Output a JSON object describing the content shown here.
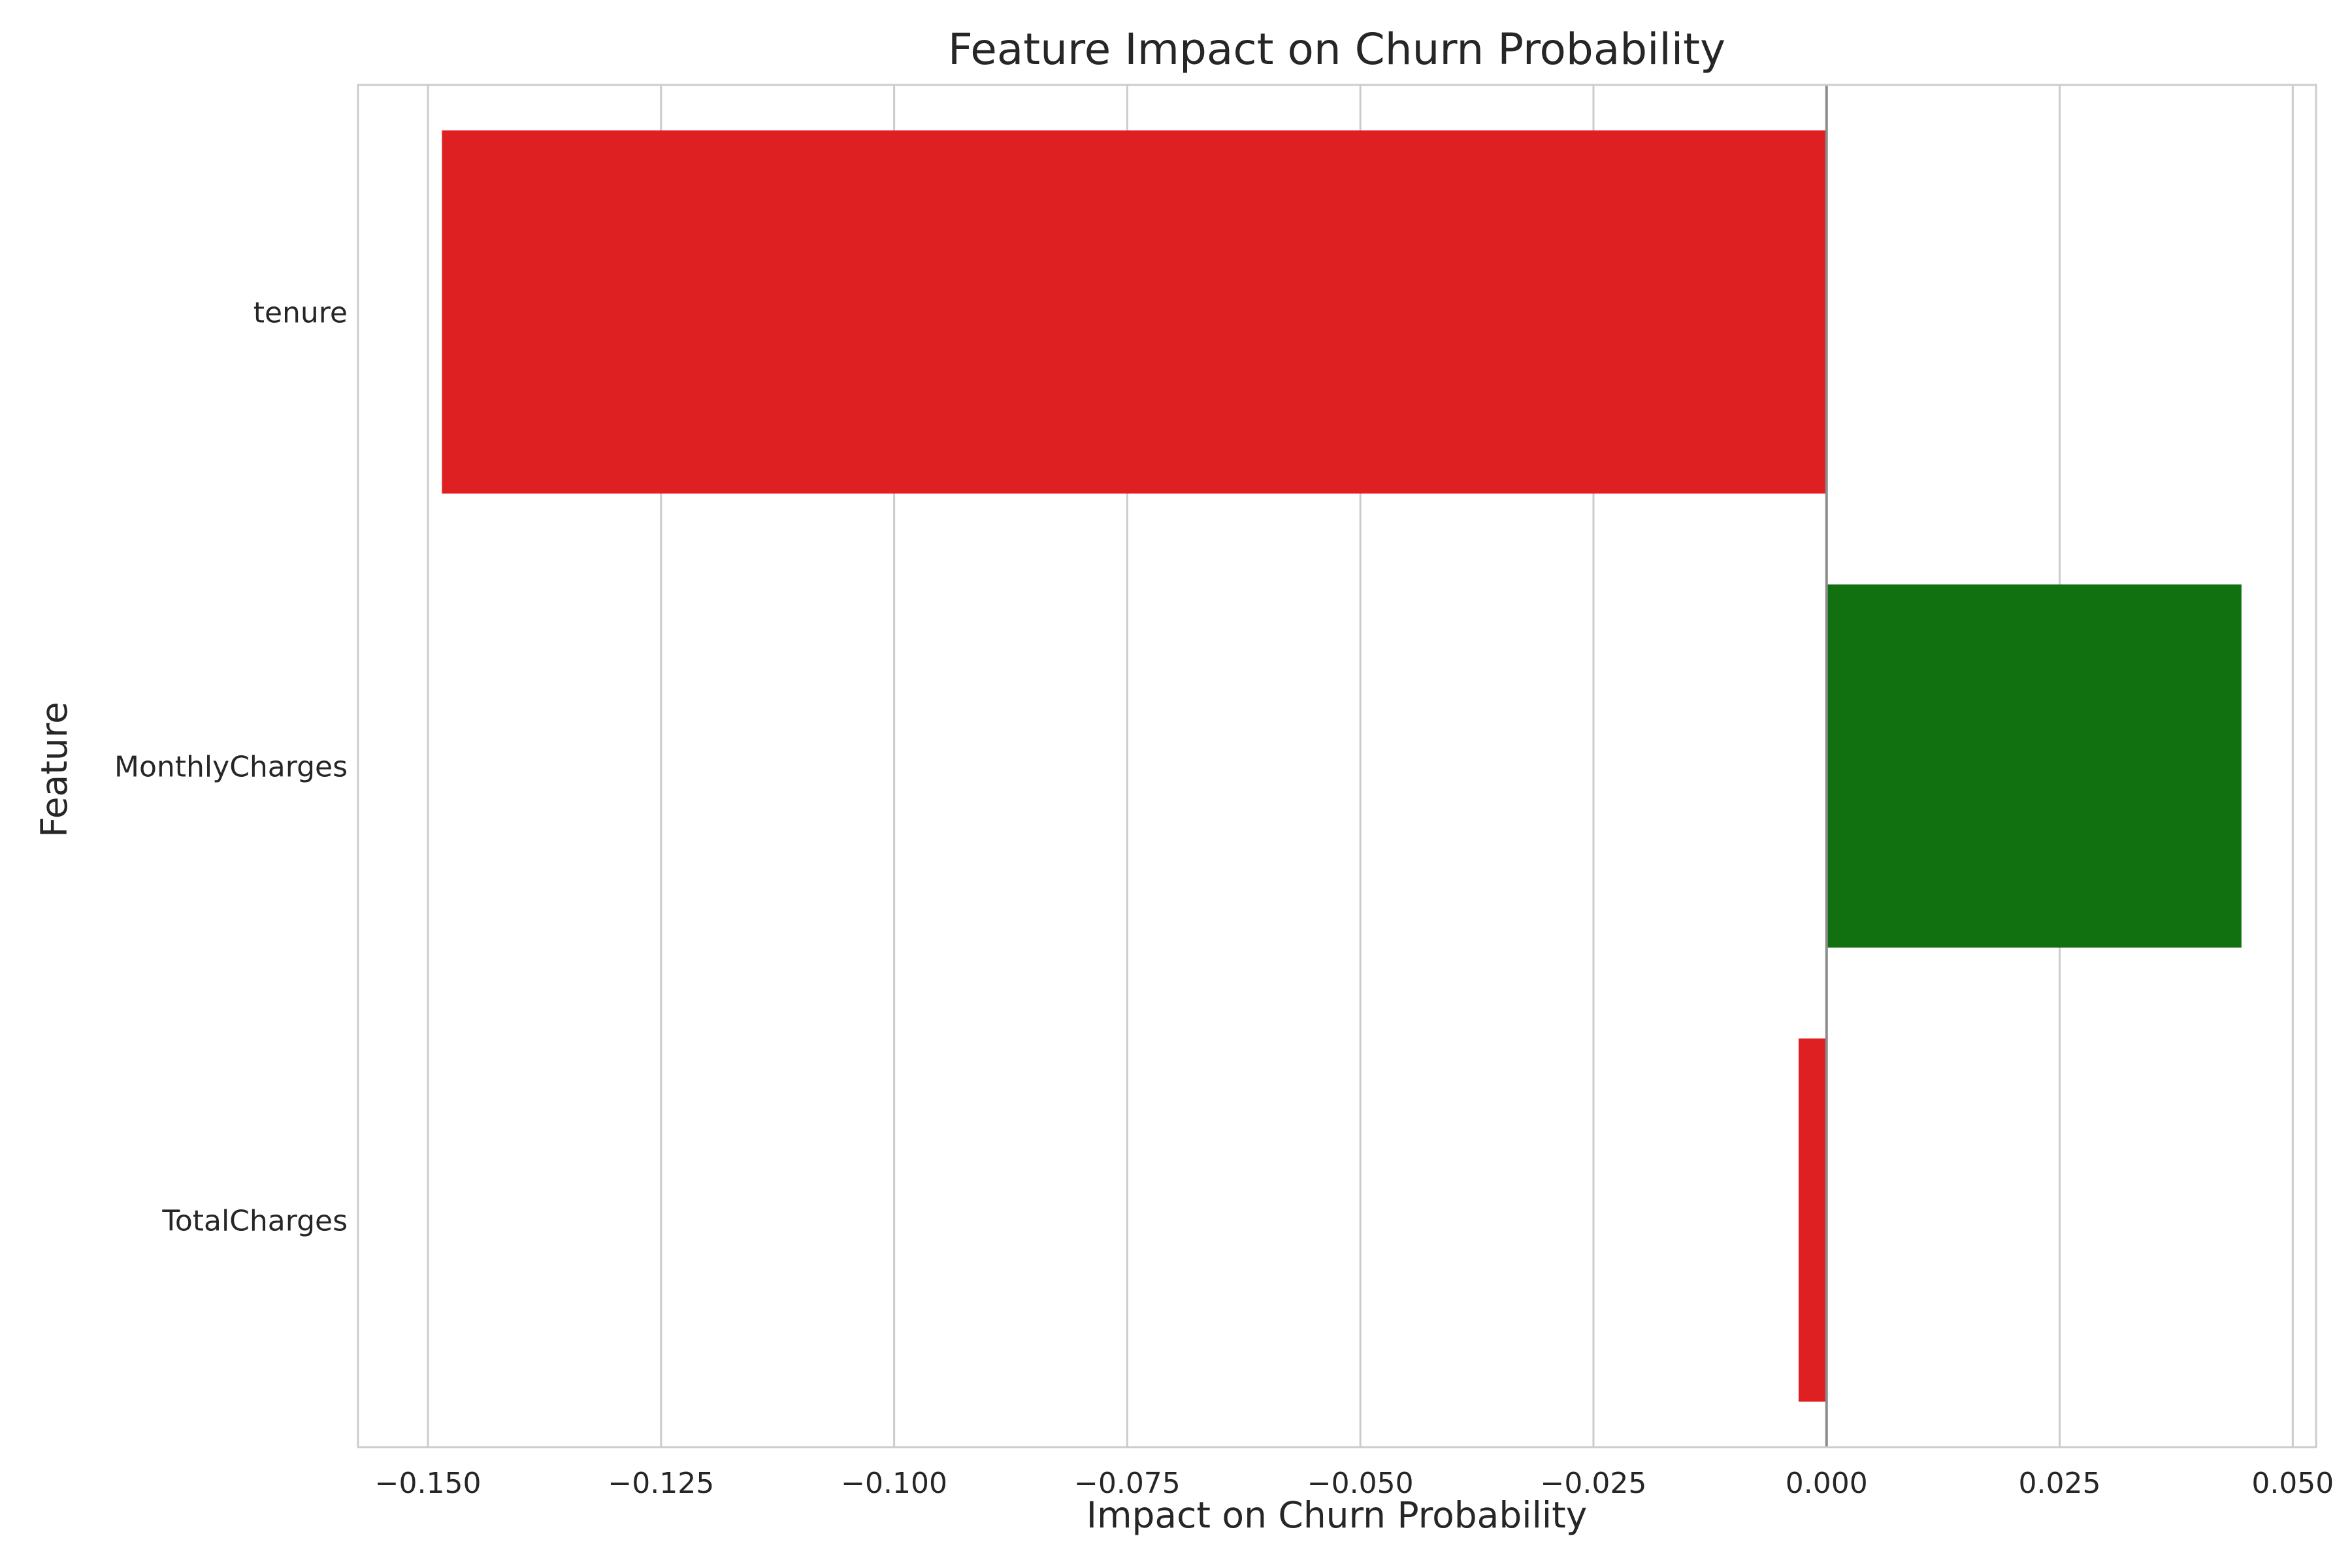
{
  "chart_data": {
    "type": "bar",
    "orientation": "horizontal",
    "title": "Feature Impact on Churn Probability",
    "xlabel": "Impact on Churn Probability",
    "ylabel": "Feature",
    "categories": [
      "tenure",
      "MonthlyCharges",
      "TotalCharges"
    ],
    "values": [
      -0.1485,
      0.0445,
      -0.003
    ],
    "xlim": [
      -0.1575,
      0.0525
    ],
    "xticks": [
      -0.15,
      -0.125,
      -0.1,
      -0.075,
      -0.05,
      -0.025,
      0.0,
      0.025,
      0.05
    ],
    "xtick_labels": [
      "−0.150",
      "−0.125",
      "−0.100",
      "−0.075",
      "−0.050",
      "−0.025",
      "0.000",
      "0.025",
      "0.050"
    ],
    "grid": "vertical",
    "zero_line": true,
    "colors": {
      "negative": "#de2023",
      "positive": "#117111",
      "grid": "#cccccc",
      "spine": "#cccccc",
      "zero_line": "#8c8c8c",
      "text": "#262626"
    }
  }
}
